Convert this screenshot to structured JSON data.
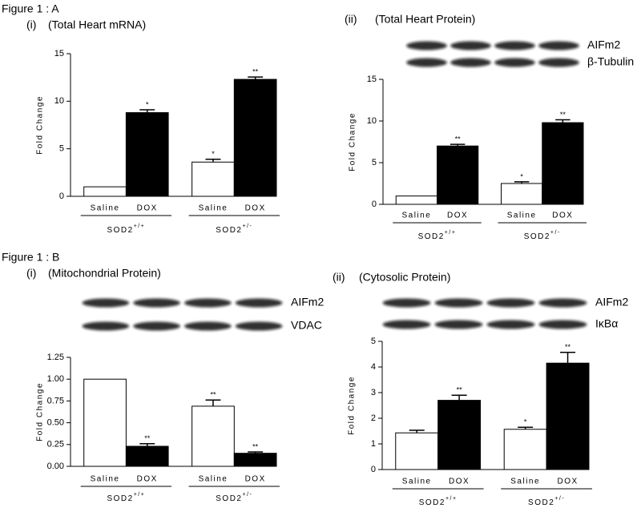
{
  "sections": [
    {
      "label": "Figure 1 : A"
    },
    {
      "label": "Figure 1 : B"
    }
  ],
  "chart_data": [
    {
      "type": "bar",
      "panel": "(i)",
      "title": "(Total Heart mRNA)",
      "y_label": "Fold Change",
      "categories": [
        "Saline",
        "DOX",
        "Saline",
        "DOX"
      ],
      "groups": [
        {
          "base": "SOD2",
          "sup": "+/+"
        },
        {
          "base": "SOD2",
          "sup": "+/-"
        }
      ],
      "values": [
        1,
        8.8,
        3.6,
        12.3
      ],
      "errors": [
        0,
        0.3,
        0.3,
        0.25
      ],
      "annotations": [
        null,
        "*",
        "*",
        "**"
      ],
      "colors": [
        "#ffffff",
        "#000000",
        "#ffffff",
        "#000000"
      ],
      "ylim": [
        0,
        15
      ],
      "yticks": [
        0,
        5,
        10,
        15
      ]
    },
    {
      "type": "bar",
      "panel": "(ii)",
      "title": "(Total Heart Protein)",
      "y_label": "Fold Change",
      "blot_labels": [
        "AIFm2",
        "β-Tubulin"
      ],
      "categories": [
        "Saline",
        "DOX",
        "Saline",
        "DOX"
      ],
      "groups": [
        {
          "base": "SOD2",
          "sup": "+/+"
        },
        {
          "base": "SOD2",
          "sup": "+/-"
        }
      ],
      "values": [
        1,
        7.0,
        2.5,
        9.8
      ],
      "errors": [
        0,
        0.2,
        0.2,
        0.35
      ],
      "annotations": [
        null,
        "**",
        "*",
        "**"
      ],
      "colors": [
        "#ffffff",
        "#000000",
        "#ffffff",
        "#000000"
      ],
      "ylim": [
        0,
        15
      ],
      "yticks": [
        0,
        5,
        10,
        15
      ]
    },
    {
      "type": "bar",
      "panel": "(i)",
      "title": "(Mitochondrial Protein)",
      "y_label": "Fold Change",
      "blot_labels": [
        "AIFm2",
        "VDAC"
      ],
      "categories": [
        "Saline",
        "DOX",
        "Saline",
        "DOX"
      ],
      "groups": [
        {
          "base": "SOD2",
          "sup": "+/+"
        },
        {
          "base": "SOD2",
          "sup": "+/-"
        }
      ],
      "values": [
        1.0,
        0.23,
        0.69,
        0.15
      ],
      "errors": [
        0,
        0.03,
        0.07,
        0.015
      ],
      "annotations": [
        null,
        "**",
        "**",
        "**"
      ],
      "colors": [
        "#ffffff",
        "#000000",
        "#ffffff",
        "#000000"
      ],
      "ylim": [
        0,
        1.25
      ],
      "yticks": [
        {
          "value": 0,
          "label": "0.00"
        },
        0.25,
        {
          "value": 0.5,
          "label": "0.50"
        },
        0.75,
        {
          "value": 1,
          "label": "1.00"
        },
        1.25
      ]
    },
    {
      "type": "bar",
      "panel": "(ii)",
      "title": "(Cytosolic Protein)",
      "y_label": "Fold Change",
      "blot_labels": [
        "AIFm2",
        "IκBα"
      ],
      "categories": [
        "Saline",
        "DOX",
        "Saline",
        "DOX"
      ],
      "groups": [
        {
          "base": "SOD2",
          "sup": "+/+"
        },
        {
          "base": "SOD2",
          "sup": "+/-"
        }
      ],
      "values": [
        1.43,
        2.7,
        1.57,
        4.15
      ],
      "errors": [
        0.1,
        0.2,
        0.08,
        0.42
      ],
      "annotations": [
        null,
        "**",
        "*",
        "**"
      ],
      "colors": [
        "#ffffff",
        "#000000",
        "#ffffff",
        "#000000"
      ],
      "ylim": [
        0,
        5
      ],
      "yticks": [
        0,
        1,
        2,
        3,
        4,
        5
      ]
    }
  ]
}
